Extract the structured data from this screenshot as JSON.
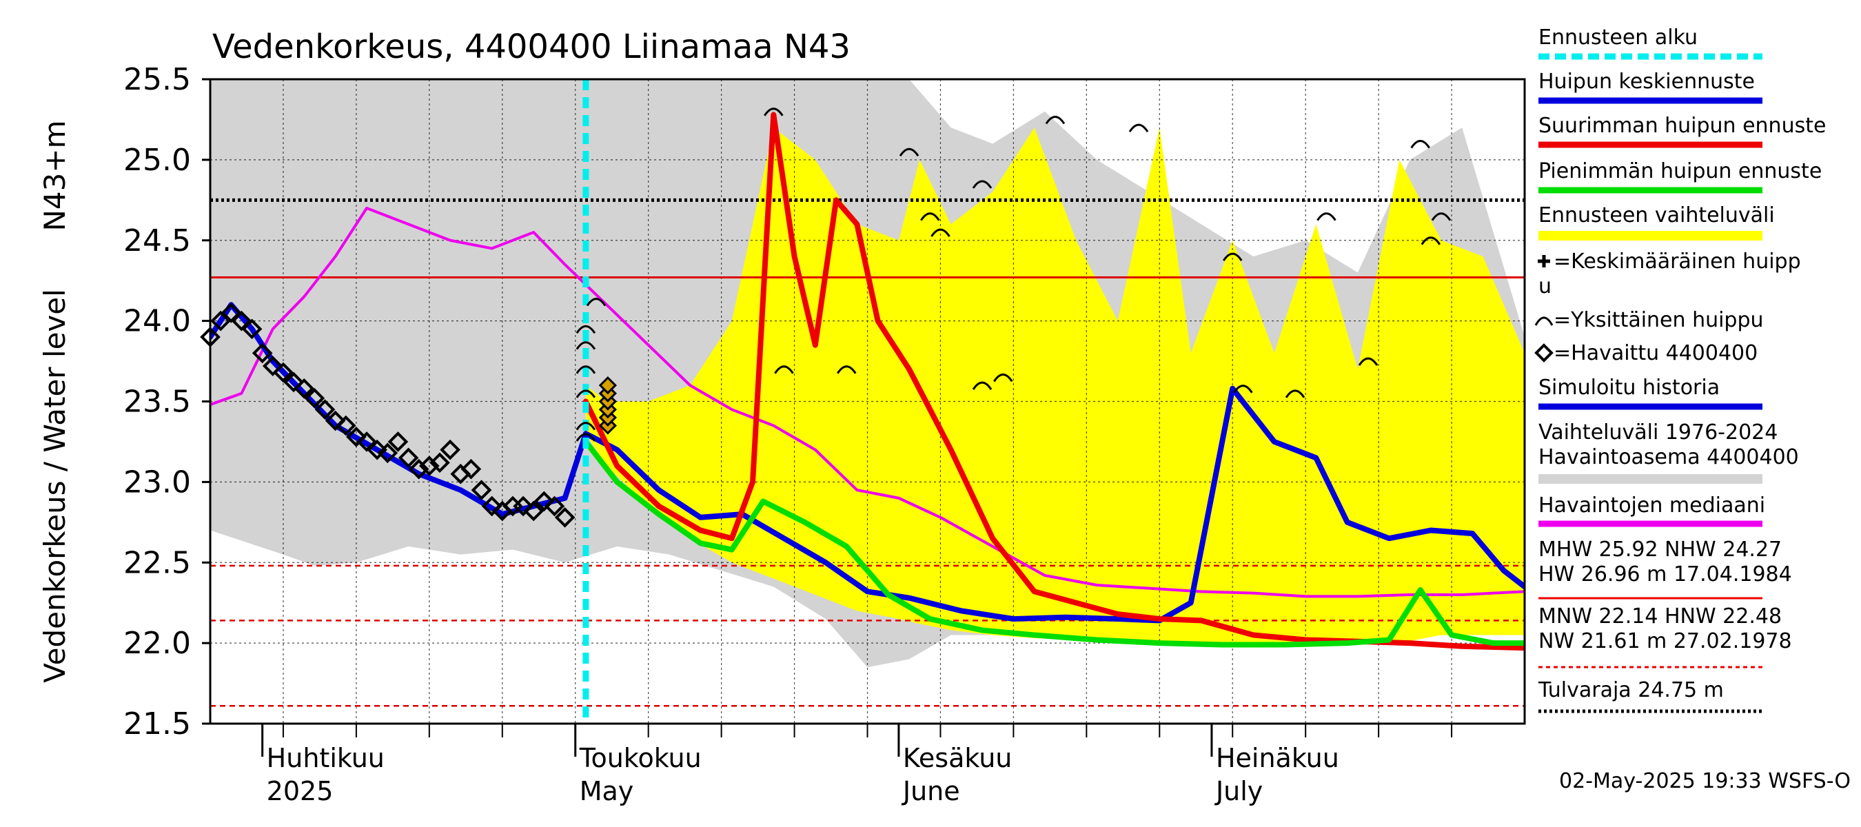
{
  "chart_data": {
    "type": "line",
    "title": "Vedenkorkeus, 4400400 Liinamaa N43",
    "ylabel": "Vedenkorkeus / Water level",
    "ylabel2": "N43+m",
    "ylim": [
      21.5,
      25.5
    ],
    "yticks": [
      "25.5",
      "25.0",
      "24.5",
      "24.0",
      "23.5",
      "23.0",
      "22.5",
      "22.0",
      "21.5"
    ],
    "x_axis": {
      "start": "2025-03-27",
      "end": "2025-07-31",
      "months": [
        {
          "date": "2025-04-01",
          "label": "Huhtikuu",
          "sublabel": "2025"
        },
        {
          "date": "2025-05-01",
          "label": "Toukokuu",
          "sublabel": "May"
        },
        {
          "date": "2025-06-01",
          "label": "Kesäkuu",
          "sublabel": "June"
        },
        {
          "date": "2025-07-01",
          "label": "Heinäkuu",
          "sublabel": "July"
        }
      ]
    },
    "forecast_start": "2025-05-02",
    "reference_lines": [
      {
        "name": "HNW",
        "value": 22.48,
        "color": "#dd0000",
        "style": "dashed"
      },
      {
        "name": "MNW",
        "value": 22.14,
        "color": "#dd0000",
        "style": "dashed"
      },
      {
        "name": "NW",
        "value": 21.61,
        "color": "#dd0000",
        "style": "dashed"
      },
      {
        "name": "NHW",
        "value": 24.27,
        "color": "#dd0000",
        "style": "solid"
      },
      {
        "name": "Tulvaraja",
        "value": 24.75,
        "color": "#000000",
        "style": "dotted"
      }
    ],
    "series": [
      {
        "name": "Vaihteluväli 1976-2024 Havaintoasema 4400400",
        "kind": "band",
        "color": "#d3d3d3",
        "x": [
          "2025-03-27",
          "2025-04-03",
          "2025-04-06",
          "2025-04-10",
          "2025-04-15",
          "2025-04-20",
          "2025-04-25",
          "2025-04-30",
          "2025-05-05",
          "2025-05-10",
          "2025-05-15",
          "2025-05-20",
          "2025-05-25",
          "2025-05-29",
          "2025-06-02",
          "2025-06-06",
          "2025-06-10",
          "2025-06-15",
          "2025-06-20",
          "2025-06-25",
          "2025-06-30",
          "2025-07-05",
          "2025-07-10",
          "2025-07-15",
          "2025-07-20",
          "2025-07-25",
          "2025-07-31"
        ],
        "low": [
          22.7,
          22.55,
          22.48,
          22.5,
          22.6,
          22.55,
          22.58,
          22.5,
          22.6,
          22.55,
          22.45,
          22.35,
          22.15,
          21.85,
          21.9,
          22.05,
          22.05,
          22.08,
          22.05,
          22.0,
          22.05,
          22.02,
          22.0,
          22.05,
          22.05,
          22.1,
          22.1
        ],
        "high": [
          25.5,
          25.5,
          25.5,
          25.5,
          25.5,
          25.5,
          25.5,
          25.5,
          25.5,
          25.5,
          25.5,
          25.5,
          25.5,
          25.5,
          25.5,
          25.2,
          25.1,
          25.3,
          25.0,
          24.8,
          24.6,
          24.4,
          24.5,
          24.3,
          25.0,
          25.2,
          23.9
        ]
      },
      {
        "name": "Ennusteen vaihteluväli",
        "kind": "band",
        "color": "#ffff00",
        "x": [
          "2025-05-02",
          "2025-05-04",
          "2025-05-08",
          "2025-05-12",
          "2025-05-16",
          "2025-05-20",
          "2025-05-24",
          "2025-05-28",
          "2025-06-01",
          "2025-06-03",
          "2025-06-06",
          "2025-06-10",
          "2025-06-14",
          "2025-06-18",
          "2025-06-22",
          "2025-06-26",
          "2025-06-29",
          "2025-07-03",
          "2025-07-07",
          "2025-07-11",
          "2025-07-15",
          "2025-07-19",
          "2025-07-23",
          "2025-07-27",
          "2025-07-31"
        ],
        "low": [
          23.3,
          23.1,
          22.85,
          22.65,
          22.5,
          22.4,
          22.3,
          22.2,
          22.15,
          22.12,
          22.08,
          22.05,
          22.03,
          22.02,
          22.01,
          22.0,
          22.0,
          22.0,
          22.0,
          22.0,
          22.0,
          22.0,
          22.05,
          22.05,
          22.05
        ],
        "high": [
          23.6,
          23.5,
          23.5,
          23.6,
          24.0,
          25.2,
          25.0,
          24.6,
          24.5,
          25.0,
          24.6,
          24.8,
          25.2,
          24.5,
          24.0,
          25.2,
          23.8,
          24.5,
          23.8,
          24.6,
          23.7,
          25.0,
          24.5,
          24.4,
          23.8
        ]
      },
      {
        "name": "Havaintojen mediaani",
        "color": "#ee00ee",
        "x": [
          "2025-03-27",
          "2025-03-30",
          "2025-04-02",
          "2025-04-05",
          "2025-04-08",
          "2025-04-11",
          "2025-04-15",
          "2025-04-19",
          "2025-04-23",
          "2025-04-27",
          "2025-04-30",
          "2025-05-04",
          "2025-05-08",
          "2025-05-12",
          "2025-05-16",
          "2025-05-20",
          "2025-05-24",
          "2025-05-28",
          "2025-06-01",
          "2025-06-05",
          "2025-06-10",
          "2025-06-15",
          "2025-06-20",
          "2025-06-25",
          "2025-06-30",
          "2025-07-05",
          "2025-07-10",
          "2025-07-15",
          "2025-07-20",
          "2025-07-25",
          "2025-07-31"
        ],
        "y": [
          23.48,
          23.55,
          23.95,
          24.15,
          24.4,
          24.7,
          24.6,
          24.5,
          24.45,
          24.55,
          24.35,
          24.1,
          23.85,
          23.6,
          23.45,
          23.35,
          23.2,
          22.95,
          22.9,
          22.78,
          22.6,
          22.42,
          22.36,
          22.34,
          22.32,
          22.31,
          22.29,
          22.29,
          22.3,
          22.3,
          22.32
        ]
      },
      {
        "name": "Simuloitu historia",
        "color": "#0000dd",
        "x": [
          "2025-03-27",
          "2025-03-29",
          "2025-03-31",
          "2025-04-02",
          "2025-04-05",
          "2025-04-08",
          "2025-04-12",
          "2025-04-16",
          "2025-04-20",
          "2025-04-24",
          "2025-04-27",
          "2025-04-30",
          "2025-05-02"
        ],
        "y": [
          23.9,
          24.1,
          23.95,
          23.75,
          23.55,
          23.35,
          23.2,
          23.05,
          22.95,
          22.8,
          22.85,
          22.9,
          23.3
        ]
      },
      {
        "name": "Huipun keskiennuste",
        "color": "#0000dd",
        "x": [
          "2025-05-02",
          "2025-05-05",
          "2025-05-09",
          "2025-05-13",
          "2025-05-17",
          "2025-05-21",
          "2025-05-25",
          "2025-05-29",
          "2025-06-02",
          "2025-06-07",
          "2025-06-12",
          "2025-06-17",
          "2025-06-22",
          "2025-06-26",
          "2025-06-29",
          "2025-07-03",
          "2025-07-07",
          "2025-07-11",
          "2025-07-14",
          "2025-07-18",
          "2025-07-22",
          "2025-07-26",
          "2025-07-29",
          "2025-07-31"
        ],
        "y": [
          23.3,
          23.2,
          22.95,
          22.78,
          22.8,
          22.65,
          22.5,
          22.32,
          22.28,
          22.2,
          22.15,
          22.16,
          22.15,
          22.14,
          22.25,
          23.58,
          23.25,
          23.15,
          22.75,
          22.65,
          22.7,
          22.68,
          22.45,
          22.35
        ]
      },
      {
        "name": "Suurimman huipun ennuste",
        "color": "#ee0000",
        "x": [
          "2025-05-02",
          "2025-05-05",
          "2025-05-09",
          "2025-05-13",
          "2025-05-16",
          "2025-05-18",
          "2025-05-20",
          "2025-05-22",
          "2025-05-24",
          "2025-05-26",
          "2025-05-28",
          "2025-05-30",
          "2025-06-02",
          "2025-06-06",
          "2025-06-10",
          "2025-06-14",
          "2025-06-18",
          "2025-06-22",
          "2025-06-26",
          "2025-06-30",
          "2025-07-05",
          "2025-07-10",
          "2025-07-15",
          "2025-07-20",
          "2025-07-25",
          "2025-07-31"
        ],
        "y": [
          23.5,
          23.1,
          22.85,
          22.7,
          22.65,
          23.0,
          25.28,
          24.4,
          23.85,
          24.75,
          24.6,
          24.0,
          23.7,
          23.2,
          22.65,
          22.32,
          22.25,
          22.18,
          22.15,
          22.14,
          22.05,
          22.02,
          22.01,
          22.0,
          21.98,
          21.97
        ]
      },
      {
        "name": "Pienimmän huipun ennuste",
        "color": "#00dd00",
        "x": [
          "2025-05-02",
          "2025-05-05",
          "2025-05-09",
          "2025-05-13",
          "2025-05-16",
          "2025-05-19",
          "2025-05-23",
          "2025-05-27",
          "2025-05-31",
          "2025-06-04",
          "2025-06-09",
          "2025-06-14",
          "2025-06-20",
          "2025-06-26",
          "2025-07-02",
          "2025-07-08",
          "2025-07-14",
          "2025-07-18",
          "2025-07-21",
          "2025-07-24",
          "2025-07-28",
          "2025-07-31"
        ],
        "y": [
          23.25,
          23.0,
          22.8,
          22.62,
          22.58,
          22.88,
          22.75,
          22.6,
          22.3,
          22.15,
          22.08,
          22.05,
          22.02,
          22.0,
          21.99,
          21.99,
          22.0,
          22.02,
          22.33,
          22.05,
          22.0,
          22.0
        ]
      }
    ],
    "observed": {
      "name": "Havaittu 4400400",
      "x": [
        "2025-03-27",
        "2025-03-28",
        "2025-03-29",
        "2025-03-30",
        "2025-03-31",
        "2025-04-01",
        "2025-04-02",
        "2025-04-03",
        "2025-04-04",
        "2025-04-05",
        "2025-04-06",
        "2025-04-07",
        "2025-04-08",
        "2025-04-09",
        "2025-04-10",
        "2025-04-11",
        "2025-04-12",
        "2025-04-13",
        "2025-04-14",
        "2025-04-15",
        "2025-04-16",
        "2025-04-17",
        "2025-04-18",
        "2025-04-19",
        "2025-04-20",
        "2025-04-21",
        "2025-04-22",
        "2025-04-23",
        "2025-04-24",
        "2025-04-25",
        "2025-04-26",
        "2025-04-27",
        "2025-04-28",
        "2025-04-29",
        "2025-04-30"
      ],
      "y": [
        23.9,
        24.0,
        24.05,
        24.0,
        23.95,
        23.8,
        23.72,
        23.68,
        23.62,
        23.58,
        23.52,
        23.45,
        23.38,
        23.35,
        23.28,
        23.25,
        23.2,
        23.18,
        23.25,
        23.15,
        23.08,
        23.1,
        23.12,
        23.2,
        23.05,
        23.08,
        22.95,
        22.85,
        22.82,
        22.85,
        22.85,
        22.82,
        22.88,
        22.85,
        22.78
      ]
    },
    "peaks": {
      "name": "Yksittäinen huippu",
      "x": [
        "2025-05-02",
        "2025-05-02",
        "2025-05-02",
        "2025-05-02",
        "2025-05-02",
        "2025-05-02",
        "2025-05-03",
        "2025-05-20",
        "2025-05-21",
        "2025-05-27",
        "2025-06-02",
        "2025-06-04",
        "2025-06-05",
        "2025-06-09",
        "2025-06-09",
        "2025-06-11",
        "2025-06-16",
        "2025-06-24",
        "2025-07-03",
        "2025-07-04",
        "2025-07-09",
        "2025-07-12",
        "2025-07-16",
        "2025-07-21",
        "2025-07-22",
        "2025-07-23"
      ],
      "y": [
        23.35,
        23.55,
        23.7,
        23.85,
        23.95,
        23.28,
        24.12,
        25.3,
        23.7,
        23.7,
        25.05,
        24.65,
        24.55,
        24.85,
        23.6,
        23.65,
        25.25,
        25.2,
        24.4,
        23.58,
        23.55,
        24.65,
        23.75,
        25.1,
        24.5,
        24.65
      ]
    },
    "legend": [
      {
        "label": "Ennusteen alku",
        "color": "#00eeee",
        "style": "dashed"
      },
      {
        "label": "Huipun keskiennuste",
        "color": "#0000dd",
        "style": "solid"
      },
      {
        "label": "Suurimman huipun ennuste",
        "color": "#ee0000",
        "style": "solid"
      },
      {
        "label": "Pienimmän huipun ennuste",
        "color": "#00dd00",
        "style": "solid"
      },
      {
        "label": "Ennusteen vaihteluväli",
        "color": "#ffff00",
        "style": "band"
      },
      {
        "label": "=Keskimääräinen huipp",
        "label2": "u",
        "symbol": "cross"
      },
      {
        "label": "=Yksittäinen huippu",
        "symbol": "arc"
      },
      {
        "label": "=Havaittu 4400400",
        "symbol": "diamond"
      },
      {
        "label": "Simuloitu historia",
        "color": "#0000dd",
        "style": "solid"
      },
      {
        "label": "Vaihteluväli 1976-2024",
        "label2": " Havaintoasema 4400400",
        "color": "#d3d3d3",
        "style": "band"
      },
      {
        "label": "Havaintojen mediaani",
        "color": "#ee00ee",
        "style": "solid"
      },
      {
        "label": "MHW   25.92 NHW  24.27",
        "label2": "HW   26.96 m 17.04.1984",
        "color": "#ee0000",
        "style": "solid"
      },
      {
        "label": "MNW   22.14 HNW  22.48",
        "label2": "NW   21.61 m 27.02.1978",
        "color": "#ee0000",
        "style": "dashed"
      },
      {
        "label": "Tulvaraja 24.75 m",
        "color": "#000000",
        "style": "dotted"
      }
    ],
    "footer": "02-May-2025 19:33 WSFS-O"
  }
}
